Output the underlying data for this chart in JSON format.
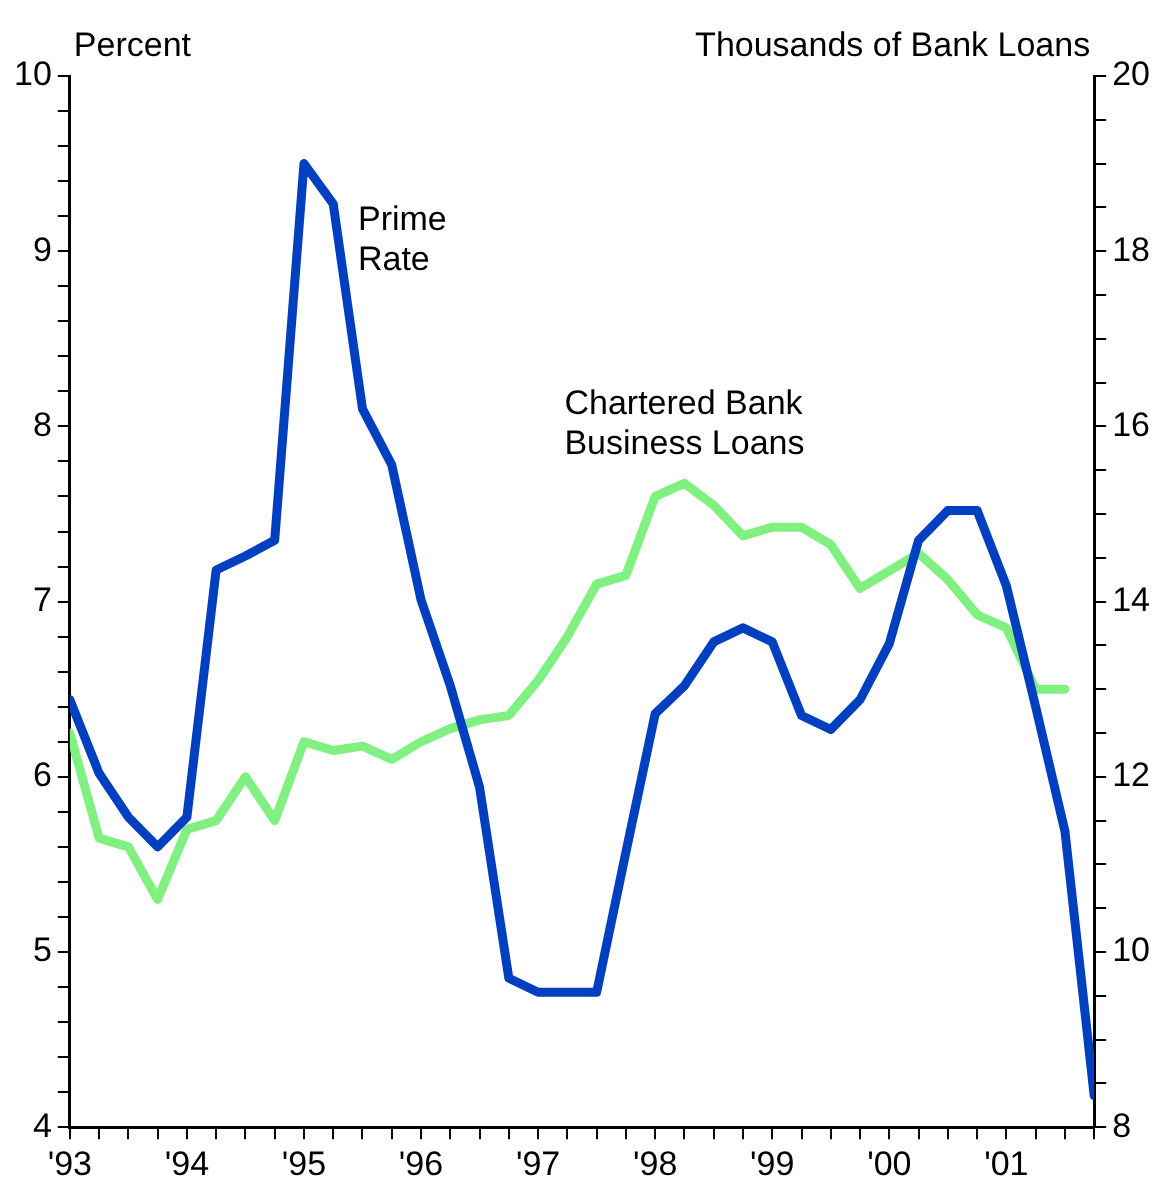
{
  "chart_data": {
    "type": "line",
    "ylabel": "Percent",
    "y2label": "Thousands of Bank Loans",
    "xlim": [
      1993,
      2001.75
    ],
    "xticks": [
      {
        "value": 1993,
        "label": "'93"
      },
      {
        "value": 1993.25,
        "label": null
      },
      {
        "value": 1993.5,
        "label": null
      },
      {
        "value": 1993.75,
        "label": null
      },
      {
        "value": 1994,
        "label": "'94"
      },
      {
        "value": 1994.25,
        "label": null
      },
      {
        "value": 1994.5,
        "label": null
      },
      {
        "value": 1994.75,
        "label": null
      },
      {
        "value": 1995,
        "label": "'95"
      },
      {
        "value": 1995.25,
        "label": null
      },
      {
        "value": 1995.5,
        "label": null
      },
      {
        "value": 1995.75,
        "label": null
      },
      {
        "value": 1996,
        "label": "'96"
      },
      {
        "value": 1996.25,
        "label": null
      },
      {
        "value": 1996.5,
        "label": null
      },
      {
        "value": 1996.75,
        "label": null
      },
      {
        "value": 1997,
        "label": "'97"
      },
      {
        "value": 1997.25,
        "label": null
      },
      {
        "value": 1997.5,
        "label": null
      },
      {
        "value": 1997.75,
        "label": null
      },
      {
        "value": 1998,
        "label": "'98"
      },
      {
        "value": 1998.25,
        "label": null
      },
      {
        "value": 1998.5,
        "label": null
      },
      {
        "value": 1998.75,
        "label": null
      },
      {
        "value": 1999,
        "label": "'99"
      },
      {
        "value": 1999.25,
        "label": null
      },
      {
        "value": 1999.5,
        "label": null
      },
      {
        "value": 1999.75,
        "label": null
      },
      {
        "value": 2000,
        "label": "'00"
      },
      {
        "value": 2000.25,
        "label": null
      },
      {
        "value": 2000.5,
        "label": null
      },
      {
        "value": 2000.75,
        "label": null
      },
      {
        "value": 2001,
        "label": "'01"
      },
      {
        "value": 2001.25,
        "label": null
      },
      {
        "value": 2001.5,
        "label": null
      },
      {
        "value": 2001.75,
        "label": null
      }
    ],
    "ylim": [
      4,
      10
    ],
    "yticks": [
      4,
      {
        "value": 4.2,
        "label": null
      },
      {
        "value": 4.4,
        "label": null
      },
      {
        "value": 4.6,
        "label": null
      },
      {
        "value": 4.8,
        "label": null
      },
      5,
      {
        "value": 5.2,
        "label": null
      },
      {
        "value": 5.4,
        "label": null
      },
      {
        "value": 5.6,
        "label": null
      },
      {
        "value": 5.8,
        "label": null
      },
      6,
      {
        "value": 6.2,
        "label": null
      },
      {
        "value": 6.4,
        "label": null
      },
      {
        "value": 6.6,
        "label": null
      },
      {
        "value": 6.8,
        "label": null
      },
      7,
      {
        "value": 7.2,
        "label": null
      },
      {
        "value": 7.4,
        "label": null
      },
      {
        "value": 7.6,
        "label": null
      },
      {
        "value": 7.8,
        "label": null
      },
      8,
      {
        "value": 8.2,
        "label": null
      },
      {
        "value": 8.4,
        "label": null
      },
      {
        "value": 8.6,
        "label": null
      },
      {
        "value": 8.8,
        "label": null
      },
      9,
      {
        "value": 9.2,
        "label": null
      },
      {
        "value": 9.4,
        "label": null
      },
      {
        "value": 9.6,
        "label": null
      },
      {
        "value": 9.8,
        "label": null
      },
      10
    ],
    "y2lim": [
      8,
      20
    ],
    "y2ticks": [
      8,
      {
        "value": 8.5,
        "label": null
      },
      {
        "value": 9,
        "label": null
      },
      {
        "value": 9.5,
        "label": null
      },
      10,
      {
        "value": 10.5,
        "label": null
      },
      {
        "value": 11,
        "label": null
      },
      {
        "value": 11.5,
        "label": null
      },
      12,
      {
        "value": 12.5,
        "label": null
      },
      {
        "value": 13,
        "label": null
      },
      {
        "value": 13.5,
        "label": null
      },
      14,
      {
        "value": 14.5,
        "label": null
      },
      {
        "value": 15,
        "label": null
      },
      {
        "value": 15.5,
        "label": null
      },
      16,
      {
        "value": 16.5,
        "label": null
      },
      {
        "value": 17,
        "label": null
      },
      {
        "value": 17.5,
        "label": null
      },
      18,
      {
        "value": 18.5,
        "label": null
      },
      {
        "value": 19,
        "label": null
      },
      {
        "value": 19.5,
        "label": null
      },
      20
    ],
    "grid": false,
    "legend": false,
    "marker": "none",
    "line_style": "solid",
    "series": [
      {
        "name": "Prime Rate",
        "color": "#0040c0",
        "x": [
          1993,
          1993.25,
          1993.5,
          1993.75,
          1994,
          1994.25,
          1994.5,
          1994.75,
          1995,
          1995.25,
          1995.5,
          1995.75,
          1996,
          1996.25,
          1996.5,
          1996.75,
          1997,
          1997.25,
          1997.5,
          1997.75,
          1998,
          1998.25,
          1998.5,
          1998.75,
          1999,
          1999.25,
          1999.5,
          1999.75,
          2000,
          2000.25,
          2000.5,
          2000.75,
          2001,
          2001.25,
          2001.5,
          2001.75
        ],
        "values": [
          6.44,
          6.02,
          5.77,
          5.6,
          5.77,
          7.18,
          7.26,
          7.35,
          9.5,
          9.27,
          8.1,
          7.78,
          7.01,
          6.52,
          5.94,
          4.85,
          4.77,
          4.77,
          4.77,
          5.57,
          6.36,
          6.52,
          6.77,
          6.85,
          6.77,
          6.35,
          6.27,
          6.44,
          6.76,
          7.35,
          7.52,
          7.52,
          7.09,
          6.4,
          5.69,
          4.18
        ]
      },
      {
        "name": "Chartered Bank Business Loans",
        "color": "#80f080",
        "axis": "y2",
        "x": [
          1993,
          1993.25,
          1993.5,
          1993.75,
          1994,
          1994.25,
          1994.5,
          1994.75,
          1995,
          1995.25,
          1995.5,
          1995.75,
          1996,
          1996.25,
          1996.5,
          1996.75,
          1997,
          1997.25,
          1997.5,
          1997.75,
          1998,
          1998.25,
          1998.5,
          1998.75,
          1999,
          1999.25,
          1999.5,
          1999.75,
          2000,
          2000.25,
          2000.5,
          2000.75,
          2001,
          2001.25,
          2001.5
        ],
        "values": [
          12.5,
          11.3,
          11.2,
          10.6,
          11.4,
          11.5,
          12,
          11.5,
          12.4,
          12.3,
          12.35,
          12.2,
          12.4,
          12.55,
          12.65,
          12.7,
          13.1,
          13.6,
          14.2,
          14.3,
          15.2,
          15.35,
          15.1,
          14.75,
          14.85,
          14.85,
          14.65,
          14.15,
          14.35,
          14.55,
          14.25,
          13.85,
          13.7,
          13,
          13
        ]
      }
    ]
  }
}
